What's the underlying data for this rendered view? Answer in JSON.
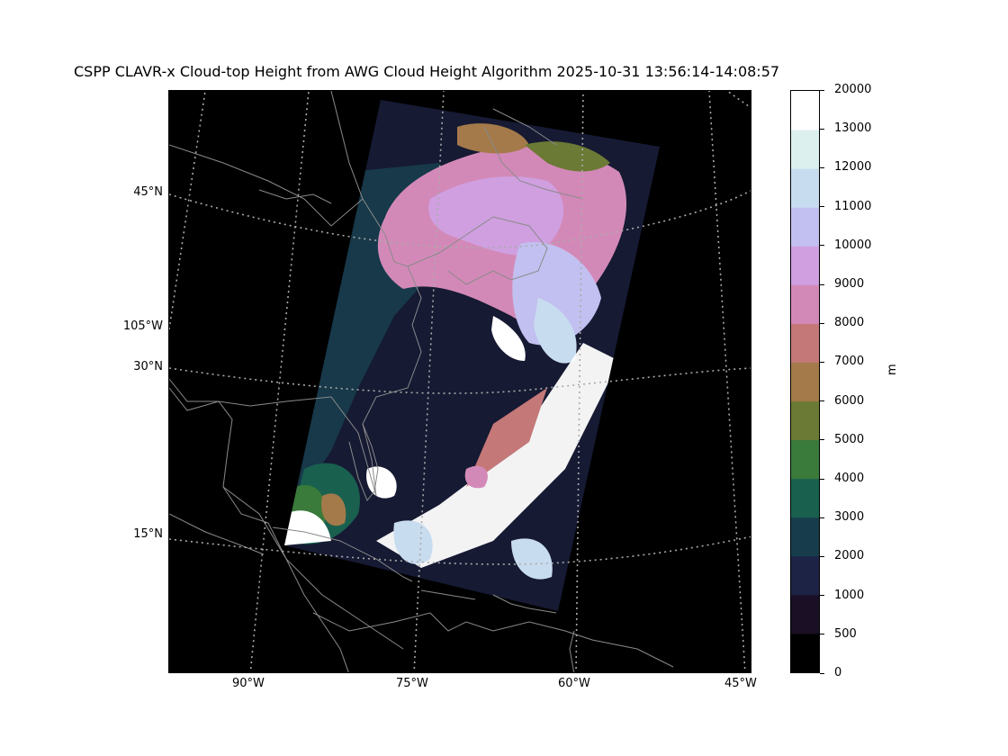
{
  "figure": {
    "title": "CSPP CLAVR-x Cloud-top Height from AWG Cloud Height Algorithm 2025-10-31 13:56:14-14:08:57"
  },
  "map": {
    "latitude_labels": [
      "45°N",
      "30°N",
      "15°N"
    ],
    "meridian_side_label": "105°W",
    "longitude_labels": [
      "90°W",
      "75°W",
      "60°W",
      "45°W"
    ],
    "gridline_style": "dotted"
  },
  "colorbar": {
    "unit": "m",
    "tick_labels": [
      "0",
      "500",
      "1000",
      "2000",
      "3000",
      "4000",
      "5000",
      "6000",
      "7000",
      "8000",
      "9000",
      "10000",
      "11000",
      "12000",
      "13000",
      "20000"
    ],
    "colors": [
      "#000000",
      "#1a0f24",
      "#1c2344",
      "#173d4d",
      "#1a604f",
      "#3a7a3b",
      "#6b7a35",
      "#a47a4a",
      "#c47878",
      "#d389b8",
      "#cf9fe0",
      "#c2c0f0",
      "#c8dcf0",
      "#dcf0ee",
      "#ffffff"
    ]
  },
  "colors": {
    "background": "#ffffff",
    "map_background": "#000000",
    "coastline": "#8a8a8a",
    "gridline": "#aaaaaa"
  }
}
